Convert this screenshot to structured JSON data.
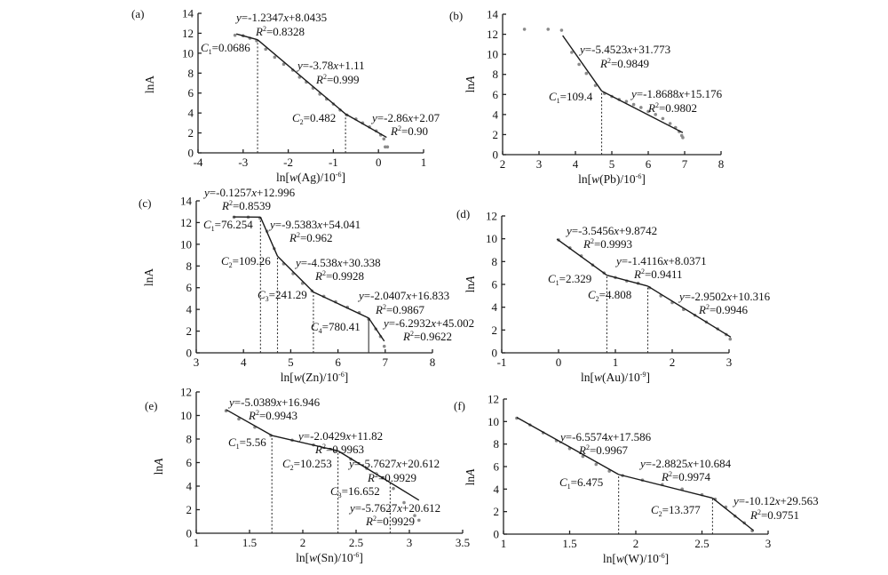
{
  "chart_data": [
    {
      "id": "a",
      "type": "line",
      "panel_label": "(a)",
      "xlabel": "ln[w(Ag)/10^-6]",
      "xlabel_parts": [
        "ln[",
        "w",
        "(Ag)/10",
        "-6",
        "]"
      ],
      "ylabel": "lnA",
      "xlim": [
        -4,
        1
      ],
      "ylim": [
        0,
        14
      ],
      "xticks": [
        -4,
        -3,
        -2,
        -1,
        0,
        1
      ],
      "yticks": [
        0,
        2,
        4,
        6,
        8,
        10,
        12,
        14
      ],
      "segments": [
        {
          "equation": "y=-1.2347x+8.0435",
          "r2": "R²=0.8328",
          "x": [
            -3.15,
            -2.68
          ]
        },
        {
          "equation": "y=-3.78x+1.11",
          "r2": "R²=0.999",
          "x": [
            -2.68,
            -0.73
          ]
        },
        {
          "equation": "y=-2.86x+2.07",
          "r2": "R²=0.90",
          "x": [
            -0.73,
            0.18
          ]
        }
      ],
      "thresholds": [
        {
          "label": "C1=0.0686",
          "name": "C",
          "sub": "1",
          "value": "=0.0686",
          "x": -2.68,
          "y": 11.35
        },
        {
          "label": "C2=0.482",
          "name": "C",
          "sub": "2",
          "value": "=0.482",
          "x": -0.73,
          "y": 3.9
        }
      ],
      "points": [
        [
          -3.18,
          11.8
        ],
        [
          -3.0,
          11.75
        ],
        [
          -2.85,
          11.5
        ],
        [
          -2.7,
          11.25
        ],
        [
          -2.5,
          10.4
        ],
        [
          -2.3,
          9.6
        ],
        [
          -2.1,
          8.9
        ],
        [
          -1.9,
          8.3
        ],
        [
          -1.75,
          7.6
        ],
        [
          -1.6,
          7.1
        ],
        [
          -1.45,
          6.5
        ],
        [
          -1.3,
          5.9
        ],
        [
          -1.15,
          5.4
        ],
        [
          -1.0,
          4.9
        ],
        [
          -0.85,
          4.3
        ],
        [
          -0.7,
          3.8
        ],
        [
          -0.5,
          3.4
        ],
        [
          -0.35,
          3.0
        ],
        [
          -0.2,
          2.6
        ],
        [
          -0.05,
          2.2
        ],
        [
          0.05,
          1.8
        ],
        [
          0.12,
          1.4
        ],
        [
          0.15,
          0.6
        ],
        [
          0.2,
          0.6
        ]
      ]
    },
    {
      "id": "b",
      "type": "line",
      "panel_label": "(b)",
      "xlabel": "ln[w(Pb)/10^-6]",
      "xlabel_parts": [
        "ln[",
        "w",
        "(Pb)/10",
        "-6",
        "]"
      ],
      "ylabel": "lnA",
      "xlim": [
        2,
        8
      ],
      "ylim": [
        0,
        14
      ],
      "xticks": [
        2,
        3,
        4,
        5,
        6,
        7,
        8
      ],
      "yticks": [
        0,
        2,
        4,
        6,
        8,
        10,
        12,
        14
      ],
      "segments": [
        {
          "equation": "y=-5.4523x+31.773",
          "r2": "R²=0.9849",
          "x": [
            3.65,
            4.72
          ]
        },
        {
          "equation": "y=-1.8688x+15.176",
          "r2": "R²=0.9802",
          "x": [
            4.72,
            6.95
          ]
        }
      ],
      "thresholds": [
        {
          "label": "C1=109.4",
          "name": "C",
          "sub": "1",
          "value": "=109.4",
          "x": 4.72,
          "y": 6.35
        }
      ],
      "points": [
        [
          2.6,
          12.5
        ],
        [
          3.25,
          12.5
        ],
        [
          3.62,
          12.4
        ],
        [
          3.9,
          10.2
        ],
        [
          4.1,
          9.0
        ],
        [
          4.3,
          8.1
        ],
        [
          4.55,
          6.9
        ],
        [
          4.8,
          6.1
        ],
        [
          5.0,
          5.8
        ],
        [
          5.2,
          5.5
        ],
        [
          5.4,
          5.3
        ],
        [
          5.6,
          5.0
        ],
        [
          5.8,
          4.7
        ],
        [
          6.0,
          4.3
        ],
        [
          6.2,
          4.0
        ],
        [
          6.4,
          3.6
        ],
        [
          6.6,
          3.1
        ],
        [
          6.75,
          2.7
        ],
        [
          6.85,
          2.3
        ],
        [
          6.92,
          1.9
        ],
        [
          6.95,
          1.7
        ]
      ]
    },
    {
      "id": "c",
      "type": "line",
      "panel_label": "(c)",
      "xlabel": "ln[w(Zn)/10^-6]",
      "xlabel_parts": [
        "ln[",
        "w",
        "(Zn)/10",
        "-6",
        "]"
      ],
      "ylabel": "lnA",
      "xlim": [
        3,
        8
      ],
      "ylim": [
        0,
        14
      ],
      "xticks": [
        3,
        4,
        5,
        6,
        7,
        8
      ],
      "yticks": [
        0,
        2,
        4,
        6,
        8,
        10,
        12,
        14
      ],
      "segments": [
        {
          "equation": "y=-0.1257x+12.996",
          "r2": "R²=0.8539",
          "x": [
            3.78,
            4.36
          ]
        },
        {
          "equation": "y=-9.5383x+54.041",
          "r2": "R²=0.962",
          "x": [
            4.36,
            4.72
          ]
        },
        {
          "equation": "y=-4.538x+30.338",
          "r2": "R²=0.9928",
          "x": [
            4.72,
            5.48
          ]
        },
        {
          "equation": "y=-2.0407x+16.833",
          "r2": "R²=0.9867",
          "x": [
            5.48,
            6.65
          ]
        },
        {
          "equation": "y=-6.2932x+45.002",
          "r2": "R²=0.9622",
          "x": [
            6.65,
            6.98
          ]
        }
      ],
      "thresholds": [
        {
          "label": "C1=76.254",
          "name": "C",
          "sub": "1",
          "value": "=76.254",
          "x": 4.36,
          "y": 12.5
        },
        {
          "label": "C2=109.26",
          "name": "C",
          "sub": "2",
          "value": "=109.26",
          "x": 4.72,
          "y": 8.9
        },
        {
          "label": "C3=241.29",
          "name": "C",
          "sub": "3",
          "value": "=241.29",
          "x": 5.48,
          "y": 5.6
        },
        {
          "label": "C4=780.41",
          "name": "C",
          "sub": "4",
          "value": "=780.41",
          "x": 6.65,
          "y": 3.2
        }
      ],
      "points": [
        [
          3.8,
          12.5
        ],
        [
          4.1,
          12.5
        ],
        [
          4.35,
          12.4
        ],
        [
          4.5,
          11.2
        ],
        [
          4.65,
          9.6
        ],
        [
          4.85,
          8.2
        ],
        [
          5.05,
          7.3
        ],
        [
          5.25,
          6.4
        ],
        [
          5.45,
          5.7
        ],
        [
          5.7,
          5.2
        ],
        [
          5.95,
          4.7
        ],
        [
          6.2,
          4.2
        ],
        [
          6.45,
          3.7
        ],
        [
          6.65,
          3.1
        ],
        [
          6.8,
          2.2
        ],
        [
          6.9,
          1.5
        ],
        [
          6.98,
          0.6
        ]
      ]
    },
    {
      "id": "d",
      "type": "line",
      "panel_label": "(d)",
      "xlabel": "ln[w(Au)/10^-9]",
      "xlabel_parts": [
        "ln[",
        "w",
        "(Au)/10",
        "-9",
        "]"
      ],
      "ylabel": "lnA",
      "xlim": [
        -1,
        3
      ],
      "ylim": [
        0,
        12
      ],
      "xticks": [
        -1,
        0,
        1,
        2,
        3
      ],
      "yticks": [
        0,
        2,
        4,
        6,
        8,
        10,
        12
      ],
      "segments": [
        {
          "equation": "y=-3.5456x+9.8742",
          "r2": "R²=0.9993",
          "x": [
            -0.03,
            0.85
          ]
        },
        {
          "equation": "y=-1.4116x+8.0371",
          "r2": "R²=0.9411",
          "x": [
            0.85,
            1.57
          ]
        },
        {
          "equation": "y=-2.9502x+10.316",
          "r2": "R²=0.9946",
          "x": [
            1.57,
            3.03
          ]
        }
      ],
      "thresholds": [
        {
          "label": "C1=2.329",
          "name": "C",
          "sub": "1",
          "value": "=2.329",
          "x": 0.85,
          "y": 6.8
        },
        {
          "label": "C2=4.808",
          "name": "C",
          "sub": "2",
          "value": "=4.808",
          "x": 1.57,
          "y": 5.85
        }
      ],
      "points": [
        [
          0.0,
          9.9
        ],
        [
          0.2,
          9.2
        ],
        [
          0.4,
          8.5
        ],
        [
          0.6,
          7.7
        ],
        [
          0.8,
          7.0
        ],
        [
          1.0,
          6.6
        ],
        [
          1.2,
          6.3
        ],
        [
          1.4,
          6.1
        ],
        [
          1.6,
          5.7
        ],
        [
          1.8,
          5.0
        ],
        [
          2.0,
          4.4
        ],
        [
          2.2,
          3.8
        ],
        [
          2.4,
          3.3
        ],
        [
          2.6,
          2.7
        ],
        [
          2.8,
          2.1
        ],
        [
          2.95,
          1.6
        ],
        [
          3.02,
          1.2
        ]
      ]
    },
    {
      "id": "e",
      "type": "line",
      "panel_label": "(e)",
      "xlabel": "ln[w(Sn)/10^-6]",
      "xlabel_parts": [
        "ln[",
        "w",
        "(Sn)/10",
        "-6",
        "]"
      ],
      "ylabel": "lnA",
      "xlim": [
        1,
        3.5
      ],
      "ylim": [
        0,
        12
      ],
      "xticks": [
        1,
        1.5,
        2,
        2.5,
        3,
        3.5
      ],
      "yticks": [
        0,
        2,
        4,
        6,
        8,
        10,
        12
      ],
      "segments": [
        {
          "equation": "y=-5.0389x+16.946",
          "r2": "R²=0.9943",
          "x": [
            1.28,
            1.71
          ]
        },
        {
          "equation": "y=-2.0429x+11.82",
          "r2": "R²=0.9963",
          "x": [
            1.71,
            2.33
          ]
        },
        {
          "equation": "y=-5.7627x+20.612",
          "r2": "R²=0.9929",
          "x": [
            2.33,
            2.82
          ]
        },
        {
          "equation": "y=-5.7627x+20.612",
          "r2": "R²=0.9929",
          "x": [
            2.82,
            3.09
          ]
        }
      ],
      "thresholds": [
        {
          "label": "C1=5.56",
          "name": "C",
          "sub": "1",
          "value": "=5.56",
          "x": 1.71,
          "y": 8.3
        },
        {
          "label": "C2=10.253",
          "name": "C",
          "sub": "2",
          "value": "=10.253",
          "x": 2.33,
          "y": 7.0
        },
        {
          "label": "C3=16.652",
          "name": "C",
          "sub": "3",
          "value": "=16.652",
          "x": 2.82,
          "y": 4.3
        }
      ],
      "points": [
        [
          1.28,
          10.4
        ],
        [
          1.4,
          9.7
        ],
        [
          1.55,
          9.0
        ],
        [
          1.7,
          8.3
        ],
        [
          1.9,
          7.9
        ],
        [
          2.1,
          7.5
        ],
        [
          2.3,
          7.0
        ],
        [
          2.45,
          6.3
        ],
        [
          2.6,
          5.5
        ],
        [
          2.75,
          4.7
        ],
        [
          2.85,
          3.8
        ],
        [
          2.95,
          2.6
        ],
        [
          3.05,
          1.5
        ],
        [
          3.09,
          1.1
        ]
      ]
    },
    {
      "id": "f",
      "type": "line",
      "panel_label": "(f)",
      "xlabel": "ln[w(W)/10^-6]",
      "xlabel_parts": [
        "ln[",
        "w",
        "(W)/10",
        "-6",
        "]"
      ],
      "ylabel": "lnA",
      "xlim": [
        1,
        3
      ],
      "ylim": [
        0,
        12
      ],
      "xticks": [
        1,
        1.5,
        2,
        2.5,
        3
      ],
      "yticks": [
        0,
        2,
        4,
        6,
        8,
        10,
        12
      ],
      "segments": [
        {
          "equation": "y=-6.5574x+17.586",
          "r2": "R²=0.9967",
          "x": [
            1.1,
            1.87
          ]
        },
        {
          "equation": "y=-2.8825x+10.684",
          "r2": "R²=0.9974",
          "x": [
            1.87,
            2.58
          ]
        },
        {
          "equation": "y=-10.12x+29.563",
          "r2": "R²=0.9751",
          "x": [
            2.58,
            2.89
          ]
        }
      ],
      "thresholds": [
        {
          "label": "C1=6.475",
          "name": "C",
          "sub": "1",
          "value": "=6.475",
          "x": 1.87,
          "y": 5.3
        },
        {
          "label": "C2=13.377",
          "name": "C",
          "sub": "2",
          "value": "=13.377",
          "x": 2.58,
          "y": 3.2
        }
      ],
      "points": [
        [
          1.1,
          10.3
        ],
        [
          1.2,
          9.7
        ],
        [
          1.3,
          9.0
        ],
        [
          1.4,
          8.3
        ],
        [
          1.5,
          7.6
        ],
        [
          1.6,
          6.9
        ],
        [
          1.7,
          6.2
        ],
        [
          1.8,
          5.6
        ],
        [
          1.9,
          5.2
        ],
        [
          2.05,
          4.8
        ],
        [
          2.2,
          4.4
        ],
        [
          2.35,
          4.0
        ],
        [
          2.5,
          3.5
        ],
        [
          2.6,
          3.1
        ],
        [
          2.68,
          2.4
        ],
        [
          2.75,
          1.6
        ],
        [
          2.82,
          1.0
        ],
        [
          2.88,
          0.3
        ]
      ]
    }
  ]
}
